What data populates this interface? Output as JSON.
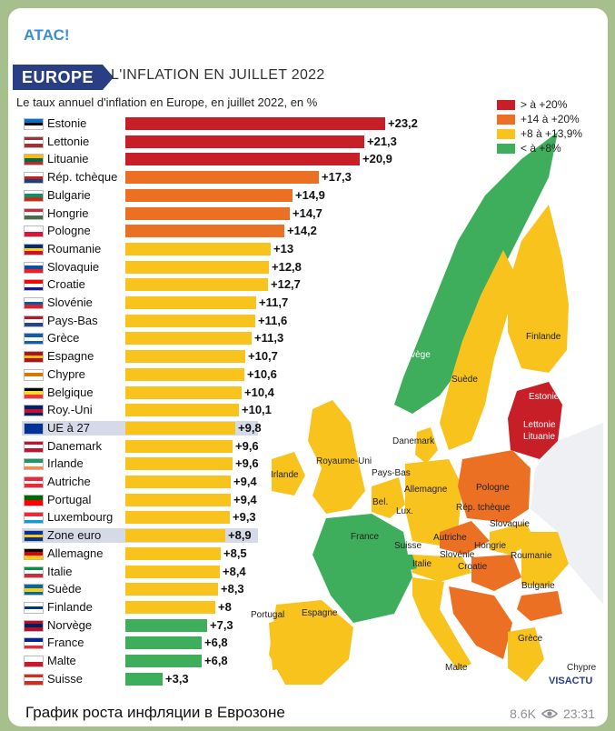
{
  "post": {
    "channel": "АТАС!",
    "caption": "График роста инфляции в Еврозоне",
    "views": "8.6K",
    "time": "23:31"
  },
  "infographic": {
    "region": "EUROPE",
    "headline": "L'INFLATION EN JUILLET 2022",
    "subtitle": "Le taux annuel d'inflation en Europe, en juillet 2022, en %",
    "brand": "VISACTU",
    "legend": [
      {
        "label": "> à +20%",
        "color": "#c81e28"
      },
      {
        "label": "+14 à +20%",
        "color": "#ec7023"
      },
      {
        "label": "+8 à +13,9%",
        "color": "#f7c31c"
      },
      {
        "label": "< à +8%",
        "color": "#3fae5c"
      }
    ],
    "map_labels": [
      "Finlande",
      "Norvège",
      "Suède",
      "Estonie",
      "Lettonie",
      "Lituanie",
      "Danemark",
      "Royaume-Uni",
      "Irlande",
      "Pays-Bas",
      "Bel.",
      "Lux.",
      "Allemagne",
      "Pologne",
      "Rép. tchèque",
      "Slovaquie",
      "Autriche",
      "Hongrie",
      "Roumanie",
      "France",
      "Suisse",
      "Slovénie",
      "Croatie",
      "Italie",
      "Bulgarie",
      "Portugal",
      "Espagne",
      "Grèce",
      "Malte",
      "Chypre"
    ]
  },
  "chart_data": {
    "type": "bar",
    "orientation": "horizontal",
    "title": "L'INFLATION EN JUILLET 2022",
    "subtitle": "Le taux annuel d'inflation en Europe, en juillet 2022, en %",
    "xlim": [
      0,
      23.2
    ],
    "categories": [
      "Estonie",
      "Lettonie",
      "Lituanie",
      "Rép. tchèque",
      "Bulgarie",
      "Hongrie",
      "Pologne",
      "Roumanie",
      "Slovaquie",
      "Croatie",
      "Slovénie",
      "Pays-Bas",
      "Grèce",
      "Espagne",
      "Chypre",
      "Belgique",
      "Roy.-Uni",
      "UE à 27",
      "Danemark",
      "Irlande",
      "Autriche",
      "Portugal",
      "Luxembourg",
      "Zone euro",
      "Allemagne",
      "Italie",
      "Suède",
      "Finlande",
      "Norvège",
      "France",
      "Malte",
      "Suisse"
    ],
    "values": [
      23.2,
      21.3,
      20.9,
      17.3,
      14.9,
      14.7,
      14.2,
      13,
      12.8,
      12.7,
      11.7,
      11.6,
      11.3,
      10.7,
      10.6,
      10.4,
      10.1,
      9.8,
      9.6,
      9.6,
      9.4,
      9.4,
      9.3,
      8.9,
      8.5,
      8.4,
      8.3,
      8,
      7.3,
      6.8,
      6.8,
      3.3
    ],
    "labels": [
      "+23,2",
      "+21,3",
      "+20,9",
      "+17,3",
      "+14,9",
      "+14,7",
      "+14,2",
      "+13",
      "+12,8",
      "+12,7",
      "+11,7",
      "+11,6",
      "+11,3",
      "+10,7",
      "+10,6",
      "+10,4",
      "+10,1",
      "+9,8",
      "+9,6",
      "+9,6",
      "+9,4",
      "+9,4",
      "+9,3",
      "+8,9",
      "+8,5",
      "+8,4",
      "+8,3",
      "+8",
      "+7,3",
      "+6,8",
      "+6,8",
      "+3,3"
    ],
    "highlighted": [
      "UE à 27",
      "Zone euro"
    ],
    "flags": [
      [
        "#0072ce",
        "#000000",
        "#ffffff"
      ],
      [
        "#9e3039",
        "#ffffff",
        "#9e3039"
      ],
      [
        "#fdb913",
        "#006a44",
        "#c1272d"
      ],
      [
        "#ffffff",
        "#d7141a",
        "#11457e"
      ],
      [
        "#ffffff",
        "#00966e",
        "#d62612"
      ],
      [
        "#cd2a3e",
        "#ffffff",
        "#436f4d"
      ],
      [
        "#ffffff",
        "#dc143c"
      ],
      [
        "#002b7f",
        "#fcd116",
        "#ce1126"
      ],
      [
        "#ffffff",
        "#0b4ea2",
        "#ee1c25"
      ],
      [
        "#ff0000",
        "#ffffff",
        "#171796"
      ],
      [
        "#ffffff",
        "#005da4",
        "#ed1c24"
      ],
      [
        "#ae1c28",
        "#ffffff",
        "#21468b"
      ],
      [
        "#0d5eaf",
        "#ffffff",
        "#0d5eaf"
      ],
      [
        "#aa151b",
        "#f1bf00",
        "#aa151b"
      ],
      [
        "#ffffff",
        "#d57800",
        "#ffffff"
      ],
      [
        "#000000",
        "#fdda24",
        "#ef3340"
      ],
      [
        "#012169",
        "#c8102e",
        "#012169"
      ],
      [
        "#003399"
      ],
      [
        "#c8102e",
        "#ffffff",
        "#c8102e"
      ],
      [
        "#169b62",
        "#ffffff",
        "#ff883e"
      ],
      [
        "#ed2939",
        "#ffffff",
        "#ed2939"
      ],
      [
        "#006600",
        "#ff0000"
      ],
      [
        "#ed2939",
        "#ffffff",
        "#00a1de"
      ],
      [
        "#003399",
        "#ffcc00",
        "#003399"
      ],
      [
        "#000000",
        "#dd0000",
        "#ffce00"
      ],
      [
        "#009246",
        "#ffffff",
        "#ce2b37"
      ],
      [
        "#006aa7",
        "#fecc00",
        "#006aa7"
      ],
      [
        "#ffffff",
        "#003580",
        "#ffffff"
      ],
      [
        "#ba0c2f",
        "#00205b",
        "#ba0c2f"
      ],
      [
        "#002395",
        "#ffffff",
        "#ed2939"
      ],
      [
        "#ffffff",
        "#cf142b"
      ],
      [
        "#da291c",
        "#ffffff",
        "#da291c"
      ]
    ]
  }
}
